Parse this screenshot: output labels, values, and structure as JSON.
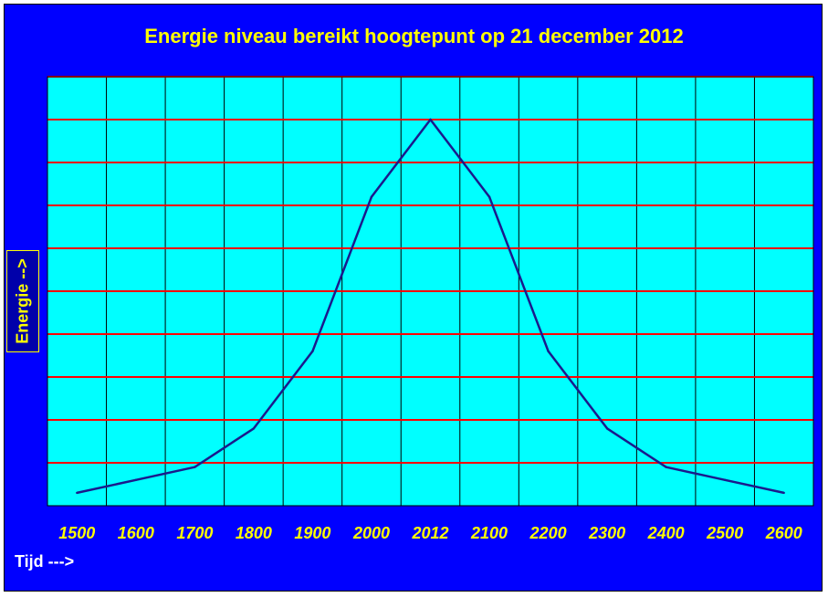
{
  "chart_data": {
    "type": "line",
    "title": "Energie niveau bereikt hoogtepunt op 21 december 2012",
    "xlabel": "Tijd --->",
    "ylabel": "Energie -->",
    "categories": [
      "1500",
      "1600",
      "1700",
      "1800",
      "1900",
      "2000",
      "2012",
      "2100",
      "2200",
      "2300",
      "2400",
      "2500",
      "2600"
    ],
    "series": [
      {
        "values": [
          0.3,
          0.6,
          0.9,
          1.8,
          3.6,
          7.2,
          9.0,
          7.2,
          3.6,
          1.8,
          0.9,
          0.6,
          0.3
        ]
      }
    ],
    "ylim": [
      0,
      10
    ],
    "y_gridlines": 10,
    "grid": true,
    "colors": {
      "background": "#0000ff",
      "plot_area": "#00ffff",
      "horizontal_grid": "#ff0000",
      "vertical_grid": "#000000",
      "line": "#1a1a8c",
      "title": "#ffff00",
      "tick_labels": "#ffff00",
      "x_axis_label": "#ffffff"
    }
  }
}
